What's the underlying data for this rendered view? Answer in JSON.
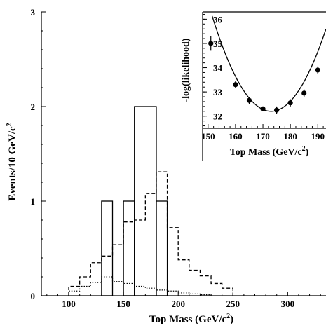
{
  "chart_data": [
    {
      "type": "histogram",
      "xlabel": "Top Mass (GeV/c",
      "xlabel_sup": "2",
      "xlabel_end": ")",
      "ylabel": "Events/10 GeV/c",
      "ylabel_sup": "2",
      "xlim": [
        75,
        335
      ],
      "ylim": [
        0,
        3
      ],
      "xticks": [
        100,
        150,
        200,
        250,
        300
      ],
      "yticks": [
        0,
        1,
        2,
        3
      ],
      "series": [
        {
          "style": "solid",
          "bins": [
            {
              "x0": 130,
              "x1": 140,
              "value": 1
            },
            {
              "x0": 150,
              "x1": 160,
              "value": 1
            },
            {
              "x0": 160,
              "x1": 180,
              "value": 2
            },
            {
              "x0": 180,
              "x1": 190,
              "value": 1
            }
          ]
        },
        {
          "style": "dashed",
          "edges": [
            100,
            110,
            120,
            130,
            140,
            150,
            160,
            170,
            180,
            190,
            200,
            210,
            220,
            230,
            240,
            250
          ],
          "values": [
            0.1,
            0.2,
            0.35,
            0.42,
            0.54,
            0.78,
            0.8,
            1.08,
            1.31,
            0.72,
            0.38,
            0.27,
            0.21,
            0.13,
            0.08
          ]
        },
        {
          "style": "dotted",
          "edges": [
            100,
            110,
            120,
            130,
            140,
            150,
            160,
            170,
            180,
            190,
            200,
            210,
            220,
            230
          ],
          "values": [
            0.05,
            0.1,
            0.14,
            0.2,
            0.15,
            0.13,
            0.1,
            0.08,
            0.06,
            0.05,
            0.03,
            0.02,
            0.01
          ]
        }
      ]
    },
    {
      "type": "scatter",
      "xlabel": "Top Mass (GeV/c",
      "xlabel_sup": "2",
      "xlabel_end": ")",
      "ylabel": "-log(likelihood)",
      "xlim": [
        148,
        193
      ],
      "ylim": [
        31.5,
        36.3
      ],
      "xticks": [
        150,
        160,
        170,
        180,
        190
      ],
      "xtick_labels": [
        "150",
        "160",
        "170",
        "180",
        "190"
      ],
      "yticks": [
        32,
        33,
        34,
        35,
        36
      ],
      "points": [
        {
          "x": 151,
          "y": 35.0,
          "err": 0.3
        },
        {
          "x": 160,
          "y": 33.3,
          "err": 0.15
        },
        {
          "x": 165,
          "y": 32.65,
          "err": 0.15
        },
        {
          "x": 170,
          "y": 32.3,
          "err": 0.1
        },
        {
          "x": 175,
          "y": 32.25,
          "err": 0.15
        },
        {
          "x": 180,
          "y": 32.55,
          "err": 0.15
        },
        {
          "x": 185,
          "y": 32.95,
          "err": 0.15
        },
        {
          "x": 190,
          "y": 33.9,
          "err": 0.15
        }
      ],
      "fit": {
        "center": 173,
        "min": 32.2,
        "k": 0.00425
      }
    }
  ]
}
